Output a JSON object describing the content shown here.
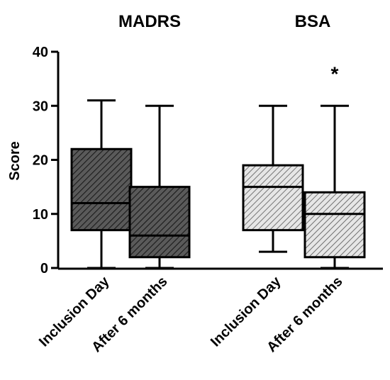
{
  "chart_data": {
    "type": "box",
    "ylabel": "Score",
    "ylim": [
      0,
      40
    ],
    "yticks": [
      0,
      10,
      20,
      30,
      40
    ],
    "grid": false,
    "groups": [
      {
        "title": "MADRS",
        "fill": "#5a5a5a",
        "boxes": [
          {
            "label": "Inclusion Day",
            "min": 0,
            "q1": 7,
            "median": 12,
            "q3": 22,
            "max": 31
          },
          {
            "label": "After 6 months",
            "min": 0,
            "q1": 2,
            "median": 6,
            "q3": 15,
            "max": 30
          }
        ]
      },
      {
        "title": "BSA",
        "fill": "#d9d9d9",
        "boxes": [
          {
            "label": "Inclusion Day",
            "min": 3,
            "q1": 7,
            "median": 15,
            "q3": 19,
            "max": 30
          },
          {
            "label": "After 6 months",
            "min": 0,
            "q1": 2,
            "median": 10,
            "q3": 14,
            "max": 30,
            "annotation": "*"
          }
        ]
      }
    ]
  }
}
